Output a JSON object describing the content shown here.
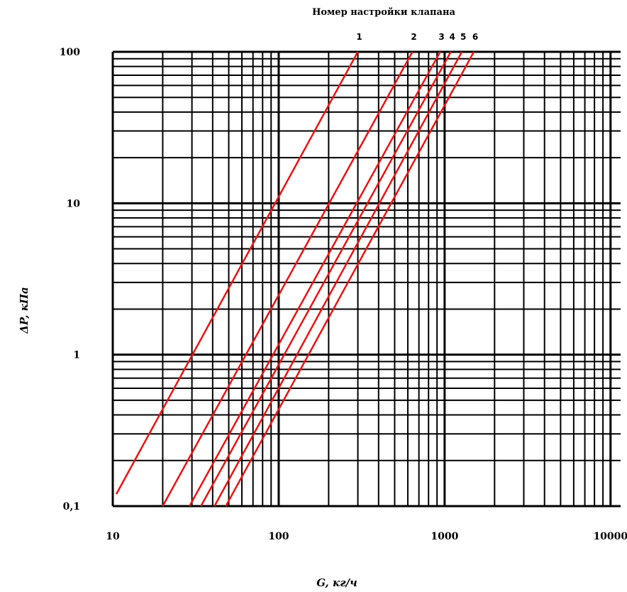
{
  "chart_data": {
    "type": "line",
    "title": "Номер настройки клапана",
    "xlabel": "G, кг/ч",
    "ylabel": "ΔP, кПа",
    "x_scale": "log",
    "y_scale": "log",
    "xlim": [
      10,
      11500
    ],
    "ylim": [
      0.1,
      100
    ],
    "x_ticks": [
      10,
      100,
      1000,
      10000
    ],
    "x_tick_labels": [
      "10",
      "100",
      "1000",
      "10000"
    ],
    "y_ticks": [
      0.1,
      1,
      10,
      100
    ],
    "y_tick_labels": [
      "0,1",
      "1",
      "10",
      "100"
    ],
    "grid": true,
    "line_color": "#ee1111",
    "series": [
      {
        "name": "1",
        "x": [
          10.5,
          300
        ],
        "y": [
          0.12,
          100
        ]
      },
      {
        "name": "2",
        "x": [
          20,
          640
        ],
        "y": [
          0.1,
          100
        ]
      },
      {
        "name": "3",
        "x": [
          29,
          940
        ],
        "y": [
          0.1,
          100
        ]
      },
      {
        "name": "4",
        "x": [
          34,
          1090
        ],
        "y": [
          0.1,
          100
        ]
      },
      {
        "name": "5",
        "x": [
          41,
          1270
        ],
        "y": [
          0.1,
          100
        ]
      },
      {
        "name": "6",
        "x": [
          48,
          1500
        ],
        "y": [
          0.1,
          100
        ]
      }
    ]
  }
}
